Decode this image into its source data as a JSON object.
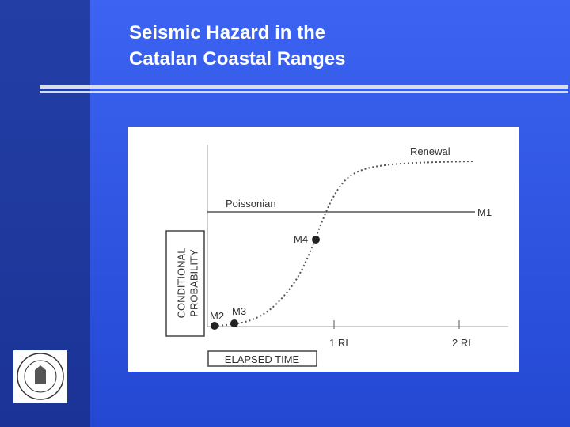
{
  "slide": {
    "title_lines": [
      "Seismic Hazard in the",
      "Catalan Coastal Ranges"
    ]
  },
  "figure": {
    "y_label_lines": [
      "CONDITIONAL",
      "PROBABILITY"
    ],
    "x_label": "ELAPSED TIME",
    "x_ticks": [
      "1 RI",
      "2 RI"
    ],
    "curves": {
      "renewal": "Renewal",
      "poissonian": "Poissonian"
    },
    "points": [
      "M1",
      "M2",
      "M3",
      "M4"
    ]
  }
}
